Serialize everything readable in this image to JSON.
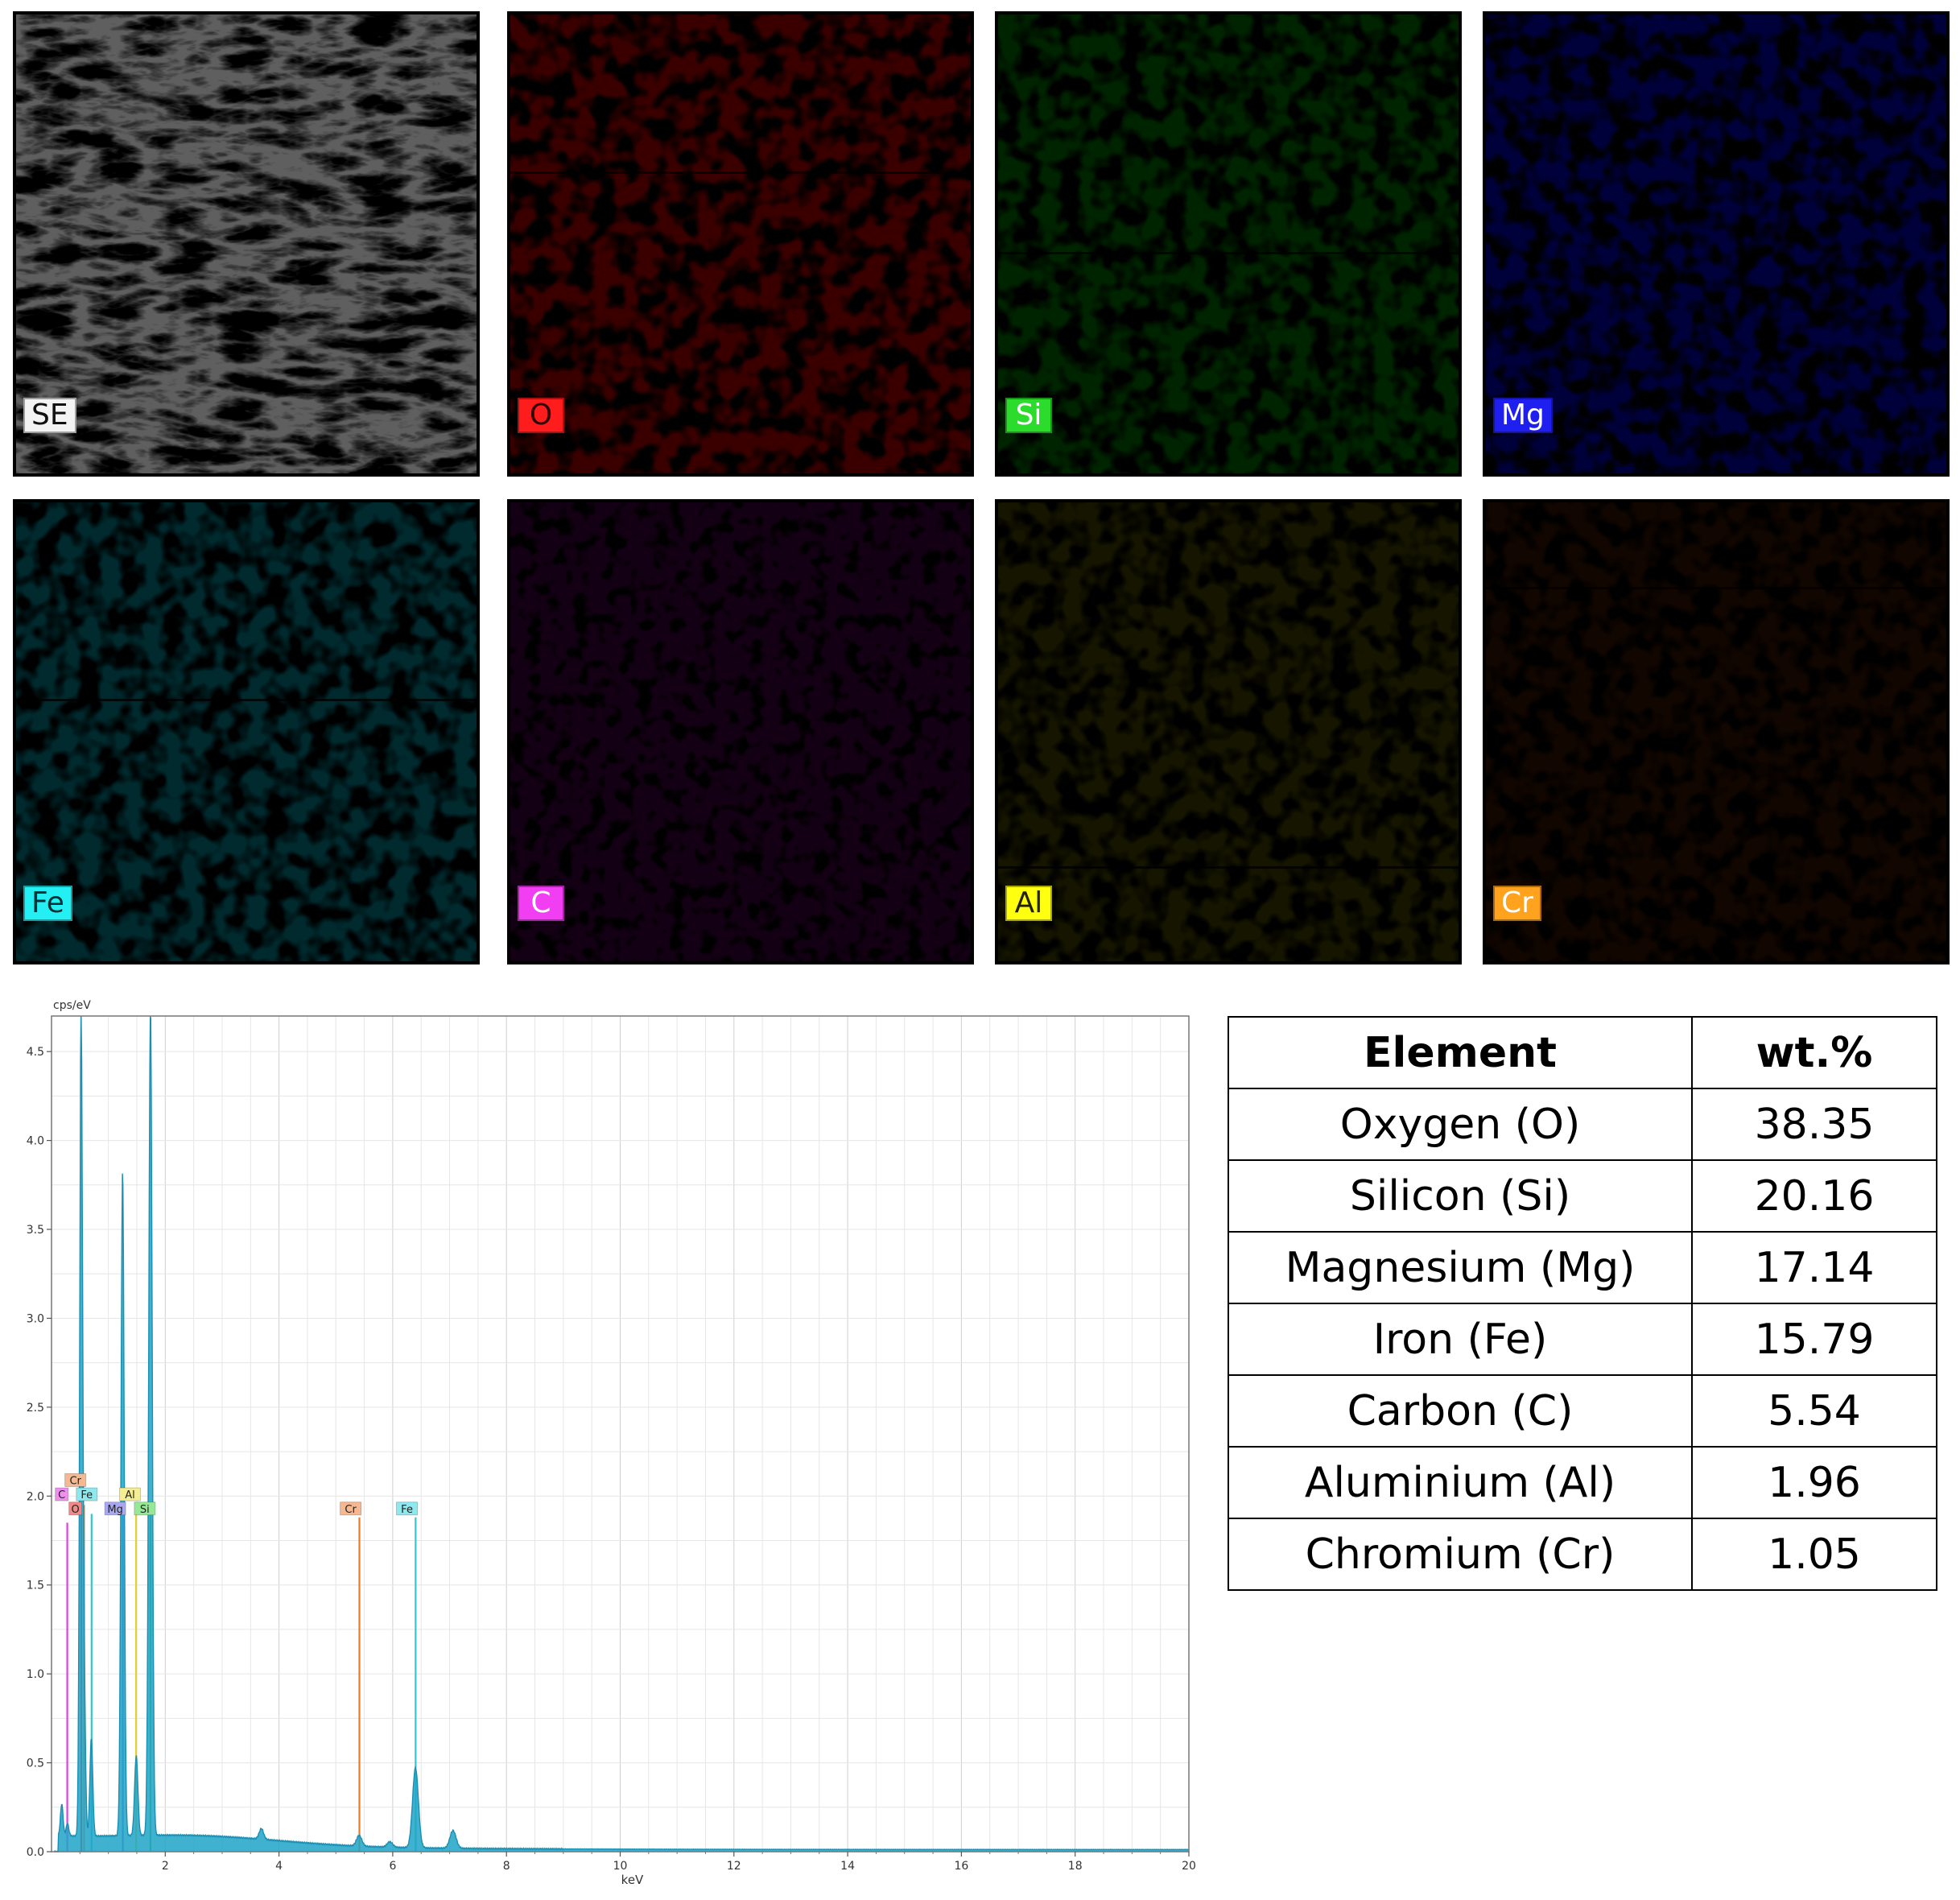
{
  "maps": [
    {
      "label": "SE",
      "base": "#5f5f5f",
      "fg": "#d8d8d8",
      "label_bg": "#f3f3f3",
      "label_fg": "#111111"
    },
    {
      "label": "O",
      "base": "#3a0000",
      "fg": "#ff1a1a",
      "label_bg": "#ff1c1c",
      "label_fg": "#300000"
    },
    {
      "label": "Si",
      "base": "#002400",
      "fg": "#22e622",
      "label_bg": "#2cdc2c",
      "label_fg": "#ffffff"
    },
    {
      "label": "Mg",
      "base": "#00003a",
      "fg": "#1e1eff",
      "label_bg": "#1f1ff0",
      "label_fg": "#ffffff"
    },
    {
      "label": "Fe",
      "base": "#002a2e",
      "fg": "#22e8f0",
      "label_bg": "#24f0f4",
      "label_fg": "#003033"
    },
    {
      "label": "C",
      "base": "#140014",
      "fg": "#f020f0",
      "label_bg": "#f23ef2",
      "label_fg": "#ffffff"
    },
    {
      "label": "Al",
      "base": "#161600",
      "fg": "#f0f000",
      "label_bg": "#ffff10",
      "label_fg": "#222200"
    },
    {
      "label": "Cr",
      "base": "#120600",
      "fg": "#f07a14",
      "label_bg": "#ffa21e",
      "label_fg": "#ffffff"
    }
  ],
  "chart_data": {
    "type": "line",
    "title": "",
    "ylabel": "cps/eV",
    "xlabel": "keV",
    "xlim": [
      0,
      20
    ],
    "ylim": [
      0,
      4.7
    ],
    "x_ticks": [
      2,
      4,
      6,
      8,
      10,
      12,
      14,
      16,
      18,
      20
    ],
    "y_ticks": [
      0.0,
      0.5,
      1.0,
      1.5,
      2.0,
      2.5,
      3.0,
      3.5,
      4.0,
      4.5
    ],
    "grid": true,
    "spectrum_color": "#1fa4c8",
    "peaks": [
      {
        "keV": 0.18,
        "height": 0.18
      },
      {
        "keV": 0.28,
        "height": 0.07
      },
      {
        "keV": 0.52,
        "height": 4.52
      },
      {
        "keV": 0.57,
        "height": 0.9
      },
      {
        "keV": 0.7,
        "height": 0.55
      },
      {
        "keV": 1.25,
        "height": 3.75
      },
      {
        "keV": 1.49,
        "height": 0.45
      },
      {
        "keV": 1.74,
        "height": 4.68
      },
      {
        "keV": 3.69,
        "height": 0.06
      },
      {
        "keV": 5.41,
        "height": 0.06
      },
      {
        "keV": 5.95,
        "height": 0.03
      },
      {
        "keV": 6.4,
        "height": 0.45
      },
      {
        "keV": 7.06,
        "height": 0.1
      }
    ],
    "element_lines": [
      {
        "element": "C",
        "keV": 0.277,
        "height": 1.85,
        "color": "#e040e0"
      },
      {
        "element": "O",
        "keV": 0.525,
        "height": 1.9,
        "color": "#e03030"
      },
      {
        "element": "Cr",
        "keV": 0.573,
        "height": 1.95,
        "color": "#f08a3a"
      },
      {
        "element": "Fe",
        "keV": 0.705,
        "height": 1.9,
        "color": "#30c8d0"
      },
      {
        "element": "Mg",
        "keV": 1.254,
        "height": 1.9,
        "color": "#6a6ae0"
      },
      {
        "element": "Al",
        "keV": 1.487,
        "height": 1.9,
        "color": "#e0d030"
      },
      {
        "element": "Si",
        "keV": 1.74,
        "height": 1.9,
        "color": "#40c040"
      },
      {
        "element": "Cr",
        "keV": 5.414,
        "height": 1.88,
        "color": "#f07a20"
      },
      {
        "element": "Fe",
        "keV": 6.403,
        "height": 1.88,
        "color": "#30c8d0"
      }
    ],
    "peak_labels": [
      {
        "text": "Cr",
        "keV": 0.42,
        "y": 2.09,
        "bg": "#f5b890"
      },
      {
        "text": "C",
        "keV": 0.18,
        "y": 2.01,
        "bg": "#f08ef0"
      },
      {
        "text": "Fe",
        "keV": 0.62,
        "y": 2.01,
        "bg": "#8ee8ee"
      },
      {
        "text": "O",
        "keV": 0.42,
        "y": 1.93,
        "bg": "#f08a8a"
      },
      {
        "text": "Al",
        "keV": 1.38,
        "y": 2.01,
        "bg": "#f4ee90"
      },
      {
        "text": "Mg",
        "keV": 1.12,
        "y": 1.93,
        "bg": "#a8a8f0"
      },
      {
        "text": "Si",
        "keV": 1.64,
        "y": 1.93,
        "bg": "#96e896"
      },
      {
        "text": "Cr",
        "keV": 5.26,
        "y": 1.93,
        "bg": "#f5b890"
      },
      {
        "text": "Fe",
        "keV": 6.25,
        "y": 1.93,
        "bg": "#8ee8ee"
      }
    ]
  },
  "table": {
    "headers": [
      "Element",
      "wt.%"
    ],
    "rows": [
      {
        "element": "Oxygen (O)",
        "wt": "38.35"
      },
      {
        "element": "Silicon (Si)",
        "wt": "20.16"
      },
      {
        "element": "Magnesium (Mg)",
        "wt": "17.14"
      },
      {
        "element": "Iron (Fe)",
        "wt": "15.79"
      },
      {
        "element": "Carbon (C)",
        "wt": "5.54"
      },
      {
        "element": "Aluminium (Al)",
        "wt": "1.96"
      },
      {
        "element": "Chromium (Cr)",
        "wt": "1.05"
      }
    ]
  }
}
